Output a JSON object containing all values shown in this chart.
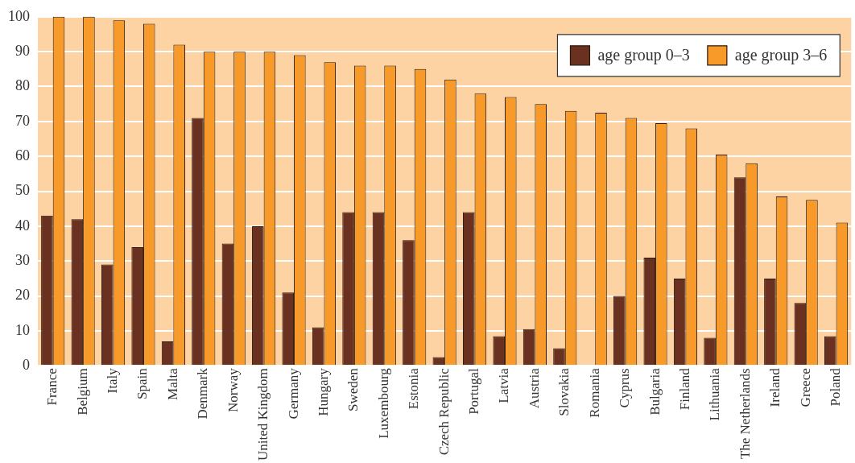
{
  "chart_data": {
    "type": "bar",
    "categories": [
      "France",
      "Belgium",
      "Italy",
      "Spain",
      "Malta",
      "Denmark",
      "Norway",
      "United Kingdom",
      "Germany",
      "Hungary",
      "Sweden",
      "Luxembourg",
      "Estonia",
      "Czech Republic",
      "Portugal",
      "Latvia",
      "Austria",
      "Slovakia",
      "Romania",
      "Cyprus",
      "Bulgaria",
      "Finland",
      "Lithuania",
      "The Netherlands",
      "Ireland",
      "Greece",
      "Poland"
    ],
    "series": [
      {
        "name": "age group 0–3",
        "color": "#6a3020",
        "values": [
          43,
          42,
          29,
          34,
          7,
          71,
          35,
          40,
          21,
          11,
          44,
          44,
          36,
          2.5,
          44,
          8.5,
          10.5,
          5,
          null,
          20,
          31,
          25,
          8,
          54,
          25,
          18,
          8.5
        ]
      },
      {
        "name": "age group 3–6",
        "color": "#f79a2a",
        "values": [
          100,
          100,
          99,
          98,
          92,
          90,
          90,
          90,
          89,
          87,
          86,
          86,
          85,
          82,
          78,
          77,
          75,
          73,
          72.5,
          71,
          69.5,
          68,
          60.5,
          58,
          48.5,
          47.5,
          41
        ]
      }
    ],
    "ylim": [
      0,
      100
    ],
    "yticks": [
      0,
      10,
      20,
      30,
      40,
      50,
      60,
      70,
      80,
      90,
      100
    ],
    "grid": "y",
    "legend": "top right"
  }
}
